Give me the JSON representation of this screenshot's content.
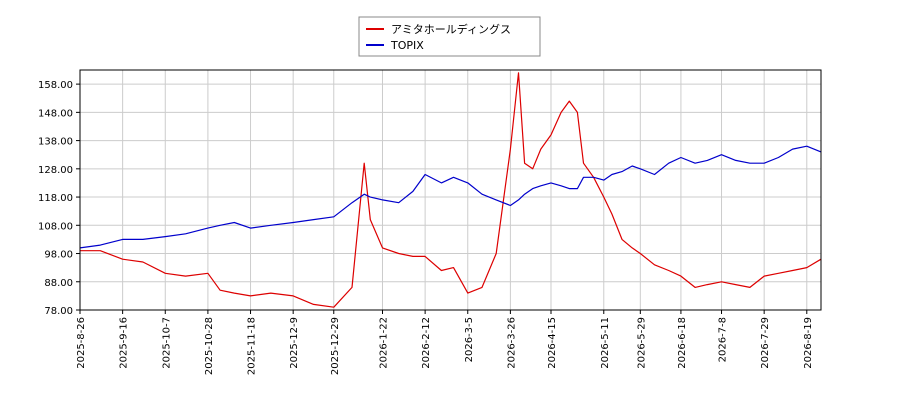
{
  "chart_data": {
    "type": "line",
    "title": "",
    "xlabel": "",
    "ylabel": "",
    "ylim": [
      78,
      163
    ],
    "yticks": [
      78.0,
      88.0,
      98.0,
      108.0,
      118.0,
      128.0,
      138.0,
      148.0,
      158.0
    ],
    "ytick_labels": [
      "78.00",
      "88.00",
      "98.00",
      "108.00",
      "118.00",
      "128.00",
      "138.00",
      "148.00",
      "158.00"
    ],
    "xtick_labels": [
      "2025-8-26",
      "2025-9-16",
      "2025-10-7",
      "2025-10-28",
      "2025-11-18",
      "2025-12-9",
      "2025-12-29",
      "2026-1-22",
      "2026-2-12",
      "2026-3-5",
      "2026-3-26",
      "2026-4-15",
      "2026-5-11",
      "2026-5-29",
      "2026-6-18",
      "2026-7-8",
      "2026-7-29",
      "2026-8-19"
    ],
    "grid": true,
    "legend_position": "top-center",
    "series": [
      {
        "name": "アミタホールディングス",
        "color": "#dd0000",
        "x": [
          "2025-8-26",
          "2025-9-5",
          "2025-9-16",
          "2025-9-26",
          "2025-10-7",
          "2025-10-17",
          "2025-10-28",
          "2025-11-3",
          "2025-11-10",
          "2025-11-18",
          "2025-11-28",
          "2025-12-9",
          "2025-12-19",
          "2025-12-29",
          "2026-1-7",
          "2026-1-13",
          "2026-1-16",
          "2026-1-22",
          "2026-1-30",
          "2026-2-6",
          "2026-2-12",
          "2026-2-20",
          "2026-2-26",
          "2026-3-5",
          "2026-3-12",
          "2026-3-19",
          "2026-3-26",
          "2026-3-30",
          "2026-4-2",
          "2026-4-6",
          "2026-4-10",
          "2026-4-15",
          "2026-4-20",
          "2026-4-24",
          "2026-4-28",
          "2026-5-1",
          "2026-5-6",
          "2026-5-11",
          "2026-5-15",
          "2026-5-20",
          "2026-5-25",
          "2026-5-29",
          "2026-6-5",
          "2026-6-12",
          "2026-6-18",
          "2026-6-25",
          "2026-7-1",
          "2026-7-8",
          "2026-7-15",
          "2026-7-22",
          "2026-7-29",
          "2026-8-5",
          "2026-8-12",
          "2026-8-19",
          "2026-8-26"
        ],
        "values": [
          99,
          99,
          96,
          95,
          91,
          90,
          91,
          85,
          84,
          83,
          84,
          83,
          80,
          79,
          86,
          130,
          110,
          100,
          98,
          97,
          97,
          92,
          93,
          84,
          86,
          98,
          135,
          162,
          130,
          128,
          135,
          140,
          148,
          152,
          148,
          130,
          125,
          118,
          112,
          103,
          100,
          98,
          94,
          92,
          90,
          86,
          87,
          88,
          87,
          86,
          90,
          91,
          92,
          93,
          96
        ]
      },
      {
        "name": "TOPIX",
        "color": "#0000cc",
        "x": [
          "2025-8-26",
          "2025-9-5",
          "2025-9-16",
          "2025-9-26",
          "2025-10-7",
          "2025-10-17",
          "2025-10-28",
          "2025-11-3",
          "2025-11-10",
          "2025-11-18",
          "2025-11-28",
          "2025-12-9",
          "2025-12-19",
          "2025-12-29",
          "2026-1-7",
          "2026-1-13",
          "2026-1-16",
          "2026-1-22",
          "2026-1-30",
          "2026-2-6",
          "2026-2-12",
          "2026-2-20",
          "2026-2-26",
          "2026-3-5",
          "2026-3-12",
          "2026-3-19",
          "2026-3-26",
          "2026-3-30",
          "2026-4-2",
          "2026-4-6",
          "2026-4-10",
          "2026-4-15",
          "2026-4-20",
          "2026-4-24",
          "2026-4-28",
          "2026-5-1",
          "2026-5-6",
          "2026-5-11",
          "2026-5-15",
          "2026-5-20",
          "2026-5-25",
          "2026-5-29",
          "2026-6-5",
          "2026-6-12",
          "2026-6-18",
          "2026-6-25",
          "2026-7-1",
          "2026-7-8",
          "2026-7-15",
          "2026-7-22",
          "2026-7-29",
          "2026-8-5",
          "2026-8-12",
          "2026-8-19",
          "2026-8-26"
        ],
        "values": [
          100,
          101,
          103,
          103,
          104,
          105,
          107,
          108,
          109,
          107,
          108,
          109,
          110,
          111,
          116,
          119,
          118,
          117,
          116,
          120,
          126,
          123,
          125,
          123,
          119,
          117,
          115,
          117,
          119,
          121,
          122,
          123,
          122,
          121,
          121,
          125,
          125,
          124,
          126,
          127,
          129,
          128,
          126,
          130,
          132,
          130,
          131,
          133,
          131,
          130,
          130,
          132,
          135,
          136,
          134
        ]
      }
    ]
  }
}
